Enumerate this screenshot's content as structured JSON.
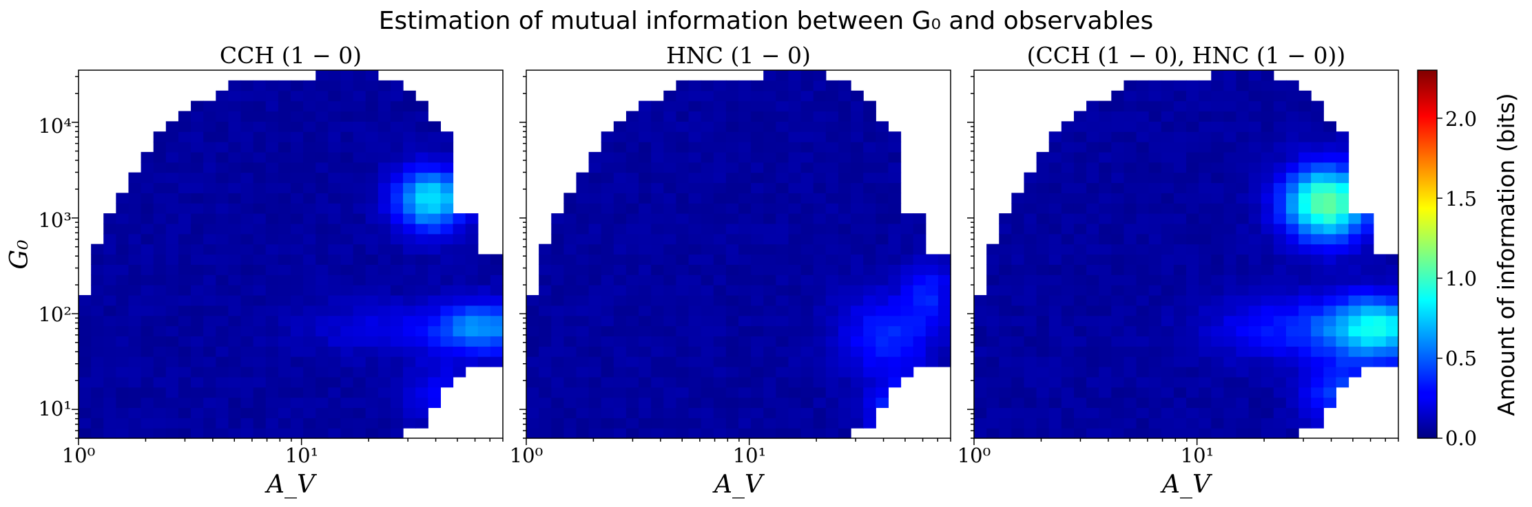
{
  "figure": {
    "title": "Estimation of mutual information between G₀ and observables",
    "colorbar_label": "Amount of information (bits)"
  },
  "chart_data": [
    {
      "type": "heatmap",
      "title": "CCH (1 − 0)",
      "xlabel": "A_V",
      "ylabel": "G₀",
      "x_scale": "log",
      "y_scale": "log",
      "xlim": [
        1,
        80
      ],
      "ylim": [
        5,
        35000
      ],
      "x_ticks": [
        {
          "value": 1,
          "label": "10⁰"
        },
        {
          "value": 10,
          "label": "10¹"
        }
      ],
      "y_ticks": [
        {
          "value": 10,
          "label": "10¹"
        },
        {
          "value": 100,
          "label": "10²"
        },
        {
          "value": 1000,
          "label": "10³"
        },
        {
          "value": 10000,
          "label": "10⁴"
        }
      ],
      "colormap": "jet",
      "clim": [
        0,
        2.3
      ],
      "hotspots": [
        {
          "A_V": 45,
          "G0": 2000,
          "value": 0.85
        },
        {
          "A_V": 70,
          "G0": 60,
          "value": 0.7
        }
      ]
    },
    {
      "type": "heatmap",
      "title": "HNC (1 − 0)",
      "xlabel": "A_V",
      "x_scale": "log",
      "y_scale": "log",
      "xlim": [
        1,
        80
      ],
      "ylim": [
        5,
        35000
      ],
      "x_ticks": [
        {
          "value": 1,
          "label": "10⁰"
        },
        {
          "value": 10,
          "label": "10¹"
        }
      ],
      "colormap": "jet",
      "clim": [
        0,
        2.3
      ],
      "hotspots": [
        {
          "A_V": 55,
          "G0": 80,
          "value": 0.55
        },
        {
          "A_V": 35,
          "G0": 10,
          "value": 0.55
        }
      ]
    },
    {
      "type": "heatmap",
      "title": "(CCH (1 − 0), HNC (1 − 0))",
      "xlabel": "A_V",
      "x_scale": "log",
      "y_scale": "log",
      "xlim": [
        1,
        80
      ],
      "ylim": [
        5,
        35000
      ],
      "x_ticks": [
        {
          "value": 1,
          "label": "10⁰"
        },
        {
          "value": 10,
          "label": "10¹"
        }
      ],
      "colormap": "jet",
      "clim": [
        0,
        2.3
      ],
      "hotspots": [
        {
          "A_V": 45,
          "G0": 1800,
          "value": 1.15
        },
        {
          "A_V": 70,
          "G0": 60,
          "value": 0.95
        }
      ]
    }
  ],
  "colorbar": {
    "range": [
      0,
      2.3
    ],
    "ticks": [
      "0.0",
      "0.5",
      "1.0",
      "1.5",
      "2.0"
    ]
  }
}
